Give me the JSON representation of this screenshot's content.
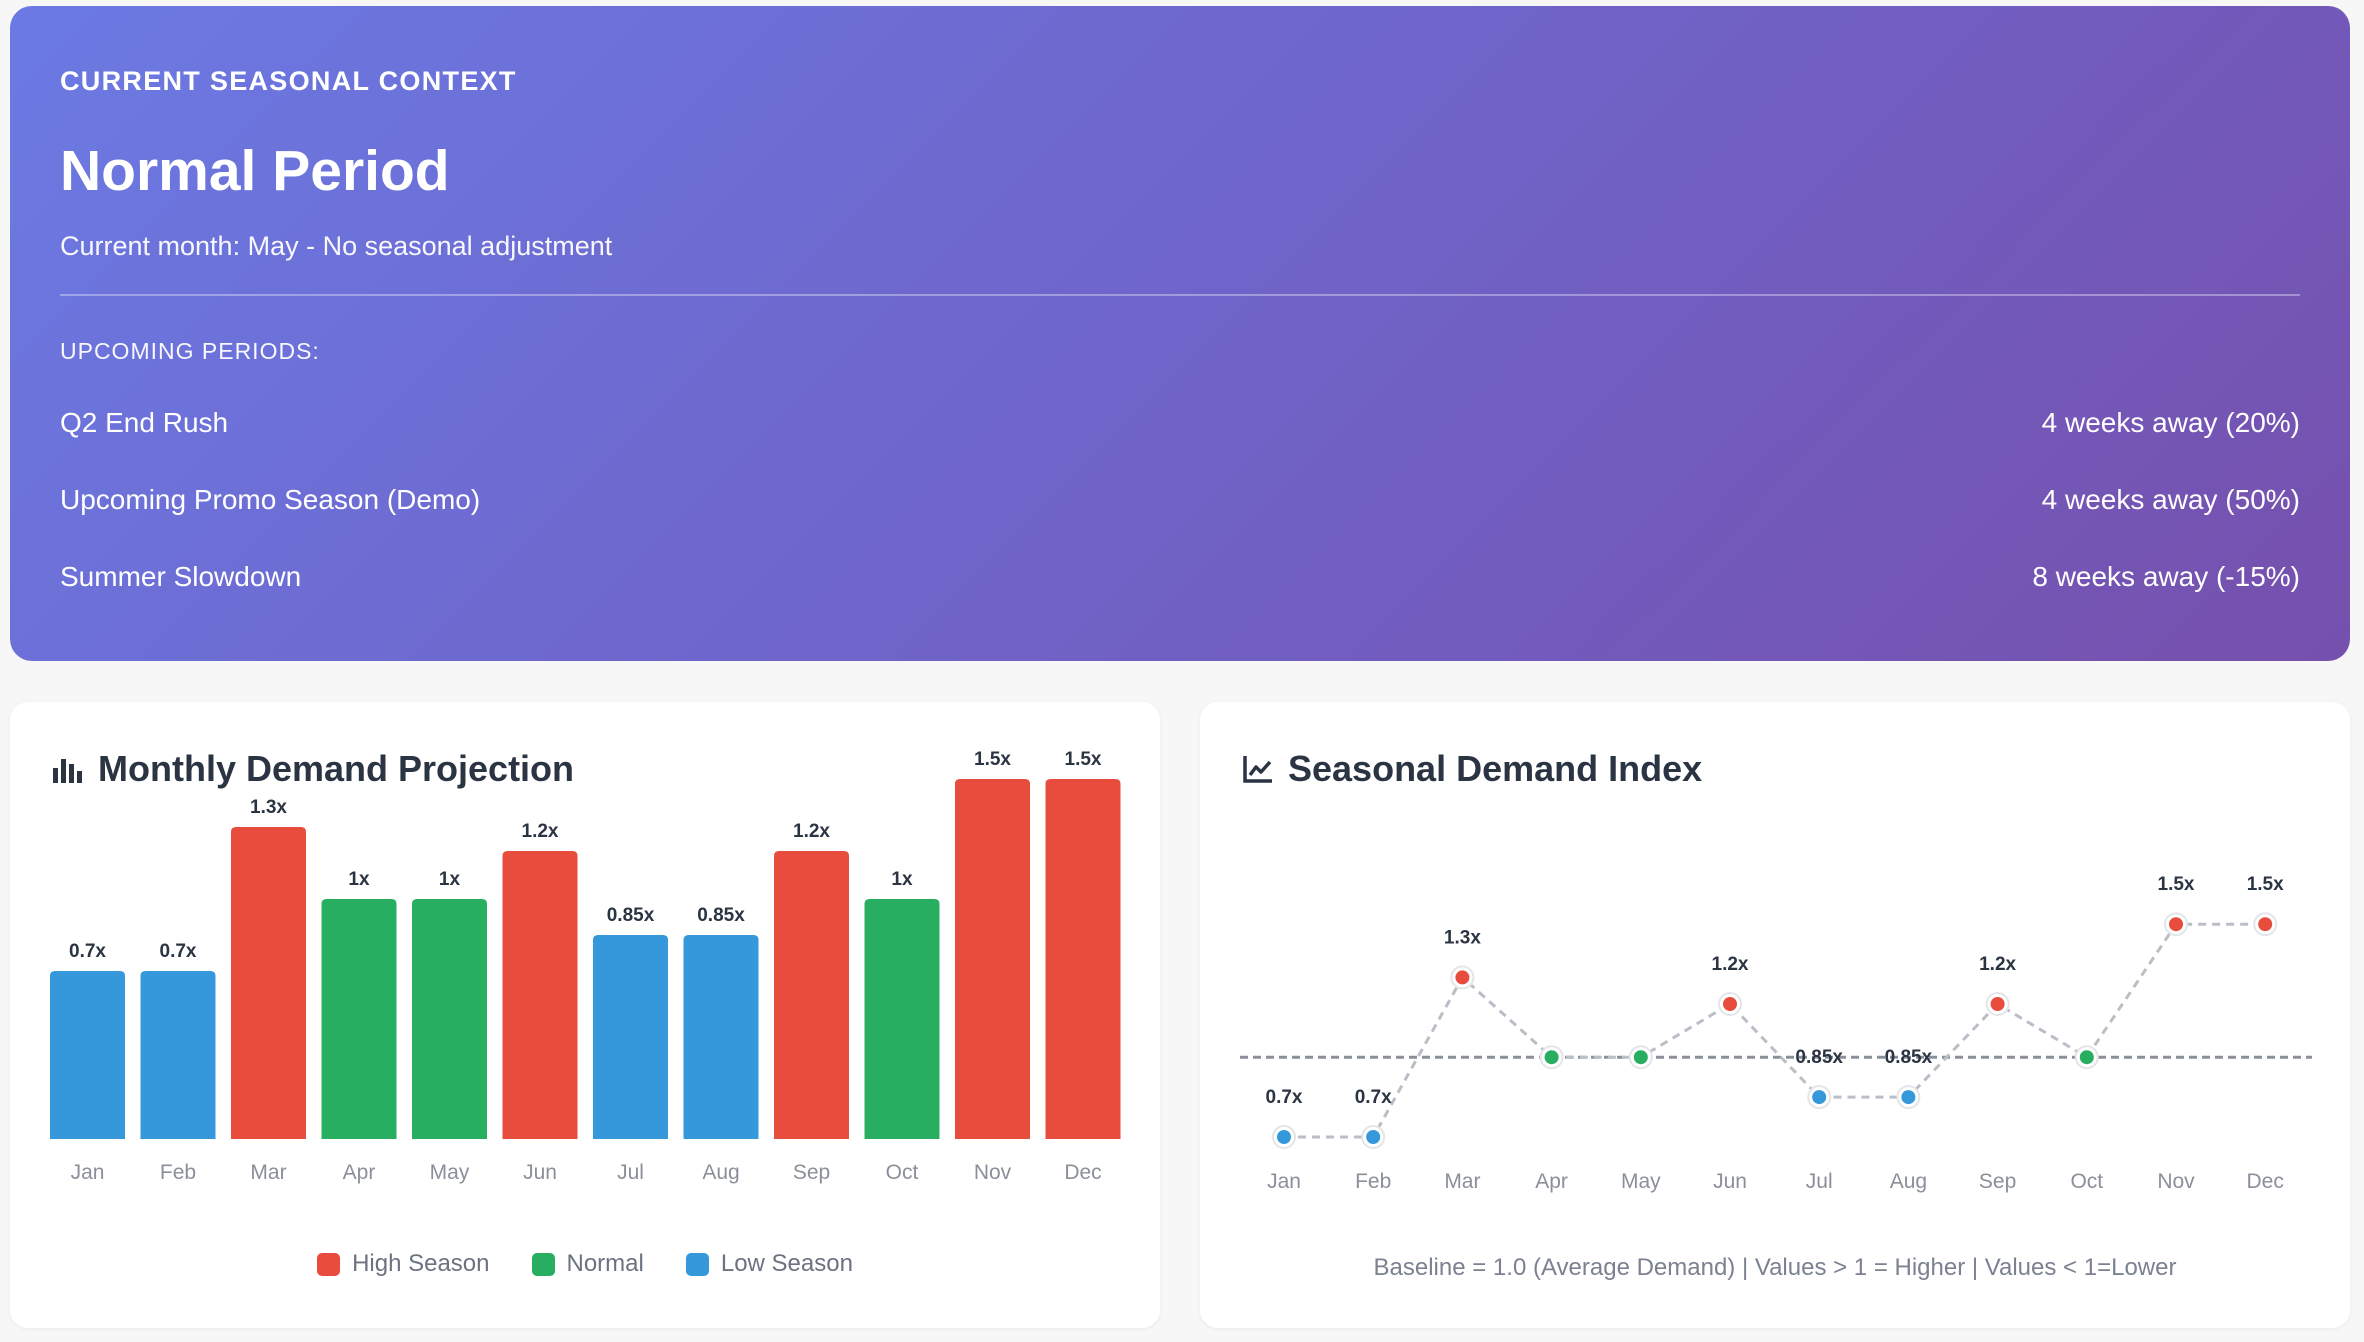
{
  "hero": {
    "eyebrow": "CURRENT SEASONAL CONTEXT",
    "title": "Normal Period",
    "subtitle": "Current month: May - No seasonal adjustment",
    "upcoming_label": "UPCOMING PERIODS:",
    "periods": [
      {
        "name": "Q2 End Rush",
        "detail": "4 weeks away (20%)"
      },
      {
        "name": "Upcoming Promo Season (Demo)",
        "detail": "4 weeks away (50%)"
      },
      {
        "name": "Summer Slowdown",
        "detail": "8 weeks away (-15%)"
      }
    ]
  },
  "colors": {
    "high": "#e74c3c",
    "normal": "#27ae60",
    "low": "#3498db",
    "baseline": "#8a8f99"
  },
  "icons": {
    "bar_chart": "bar-chart-icon",
    "line_chart": "line-chart-icon"
  },
  "bar_card": {
    "title": "Monthly Demand Projection",
    "legend": [
      {
        "label": "High Season",
        "color": "#e74c3c"
      },
      {
        "label": "Normal",
        "color": "#27ae60"
      },
      {
        "label": "Low Season",
        "color": "#3498db"
      }
    ]
  },
  "line_card": {
    "title": "Seasonal Demand Index",
    "footnote": "Baseline = 1.0 (Average Demand) | Values > 1 = Higher | Values < 1=Lower"
  },
  "chart_data": [
    {
      "type": "bar",
      "title": "Monthly Demand Projection",
      "categories": [
        "Jan",
        "Feb",
        "Mar",
        "Apr",
        "May",
        "Jun",
        "Jul",
        "Aug",
        "Sep",
        "Oct",
        "Nov",
        "Dec"
      ],
      "values": [
        0.7,
        0.7,
        1.3,
        1,
        1,
        1.2,
        0.85,
        0.85,
        1.2,
        1,
        1.5,
        1.5
      ],
      "labels": [
        "0.7x",
        "0.7x",
        "1.3x",
        "1x",
        "1x",
        "1.2x",
        "0.85x",
        "0.85x",
        "1.2x",
        "1x",
        "1.5x",
        "1.5x"
      ],
      "season": [
        "low",
        "low",
        "high",
        "normal",
        "normal",
        "high",
        "low",
        "low",
        "high",
        "normal",
        "high",
        "high"
      ],
      "ylim": [
        0,
        1.5
      ],
      "grid": false,
      "legend_position": "bottom-center"
    },
    {
      "type": "line",
      "title": "Seasonal Demand Index",
      "categories": [
        "Jan",
        "Feb",
        "Mar",
        "Apr",
        "May",
        "Jun",
        "Jul",
        "Aug",
        "Sep",
        "Oct",
        "Nov",
        "Dec"
      ],
      "values": [
        0.7,
        0.7,
        1.3,
        1,
        1,
        1.2,
        0.85,
        0.85,
        1.2,
        1,
        1.5,
        1.5
      ],
      "labels": [
        "0.7x",
        "0.7x",
        "1.3x",
        "",
        "",
        "1.2x",
        "0.85x",
        "0.85x",
        "1.2x",
        "",
        "1.5x",
        "1.5x"
      ],
      "season": [
        "low",
        "low",
        "high",
        "normal",
        "normal",
        "high",
        "low",
        "low",
        "high",
        "normal",
        "high",
        "high"
      ],
      "baseline": 1.0,
      "ylim": [
        0.7,
        1.5
      ],
      "grid": false
    }
  ]
}
